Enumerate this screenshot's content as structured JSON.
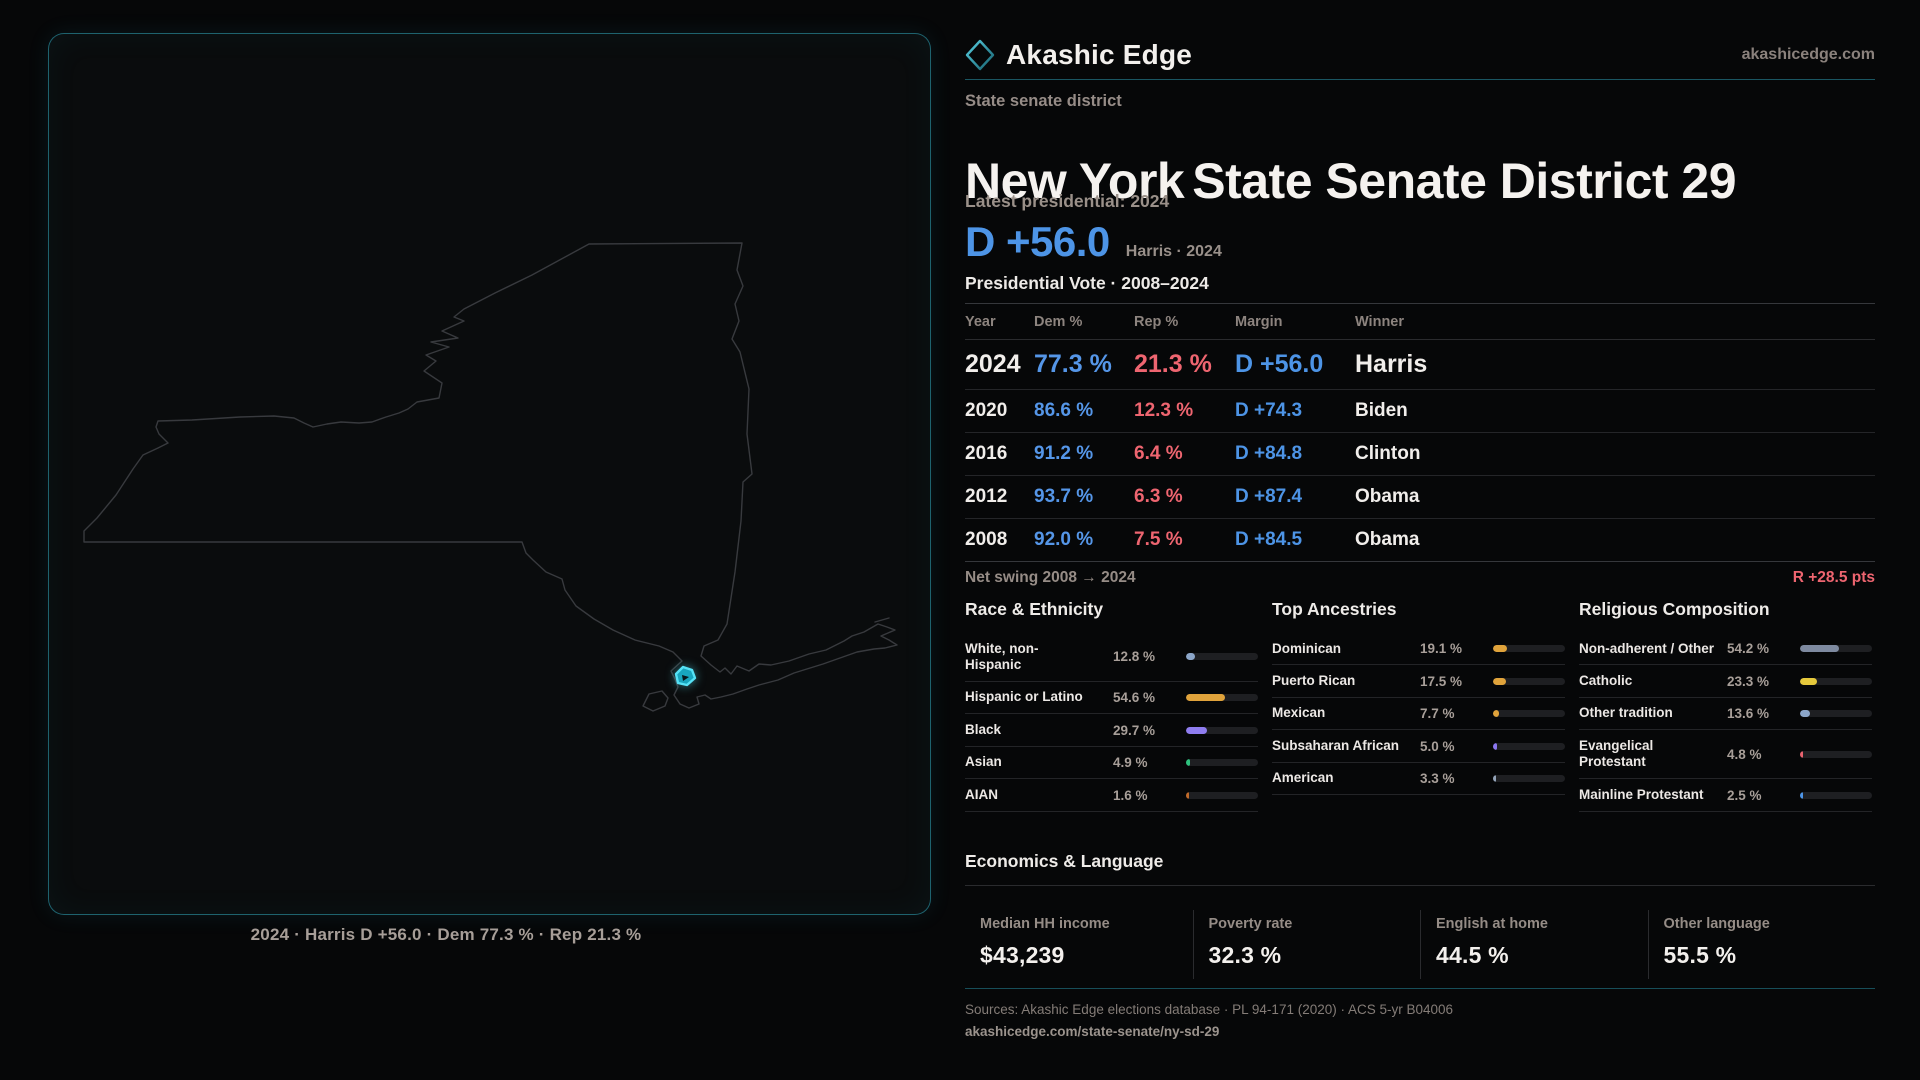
{
  "brand": {
    "name": "Akashic Edge",
    "domain": "akashicedge.com"
  },
  "map": {
    "caption": "2024 · Harris D +56.0 · Dem 77.3 % · Rep 21.3 %"
  },
  "header": {
    "kicker": "State senate district",
    "title_region": "New York",
    "title_body": "State Senate District 29",
    "latest_label": "Latest presidential: 2024",
    "headline_margin": "D +56.0",
    "headline_note": "Harris · 2024"
  },
  "vote_table": {
    "title": "Presidential Vote · 2008–2024",
    "columns": [
      "Year",
      "Dem %",
      "Rep %",
      "Margin",
      "Winner"
    ],
    "rows": [
      {
        "year": "2024",
        "dem": "77.3 %",
        "rep": "21.3 %",
        "margin": "D +56.0",
        "winner": "Harris",
        "emphasis": true
      },
      {
        "year": "2020",
        "dem": "86.6 %",
        "rep": "12.3 %",
        "margin": "D +74.3",
        "winner": "Biden",
        "emphasis": false
      },
      {
        "year": "2016",
        "dem": "91.2 %",
        "rep": "6.4 %",
        "margin": "D +84.8",
        "winner": "Clinton",
        "emphasis": false
      },
      {
        "year": "2012",
        "dem": "93.7 %",
        "rep": "6.3 %",
        "margin": "D +87.4",
        "winner": "Obama",
        "emphasis": false
      },
      {
        "year": "2008",
        "dem": "92.0 %",
        "rep": "7.5 %",
        "margin": "D +84.5",
        "winner": "Obama",
        "emphasis": false
      }
    ],
    "net_swing_label": "Net swing 2008 → 2024",
    "net_swing_value": "R +28.5 pts"
  },
  "demographics": [
    {
      "key": "race",
      "title": "Race & Ethnicity",
      "rows": [
        {
          "label": "White, non-Hispanic",
          "value": "12.8 %",
          "pct": 12.8,
          "color": "#8ca6c9"
        },
        {
          "label": "Hispanic or Latino",
          "value": "54.6 %",
          "pct": 54.6,
          "color": "#e0a33b"
        },
        {
          "label": "Black",
          "value": "29.7 %",
          "pct": 29.7,
          "color": "#8f7df0"
        },
        {
          "label": "Asian",
          "value": "4.9 %",
          "pct": 4.9,
          "color": "#2ec27e"
        },
        {
          "label": "AIAN",
          "value": "1.6 %",
          "pct": 1.6,
          "color": "#c06a2a"
        }
      ]
    },
    {
      "key": "ancestries",
      "title": "Top Ancestries",
      "rows": [
        {
          "label": "Dominican",
          "value": "19.1 %",
          "pct": 19.1,
          "color": "#e0a33b"
        },
        {
          "label": "Puerto Rican",
          "value": "17.5 %",
          "pct": 17.5,
          "color": "#e0a33b"
        },
        {
          "label": "Mexican",
          "value": "7.7 %",
          "pct": 7.7,
          "color": "#e0a33b"
        },
        {
          "label": "Subsaharan African",
          "value": "5.0 %",
          "pct": 5.0,
          "color": "#8a76f0"
        },
        {
          "label": "American",
          "value": "3.3 %",
          "pct": 3.3,
          "color": "#93a3b8"
        }
      ]
    },
    {
      "key": "religion",
      "title": "Religious Composition",
      "rows": [
        {
          "label": "Non-adherent / Other",
          "value": "54.2 %",
          "pct": 54.2,
          "color": "#7e8aa0"
        },
        {
          "label": "Catholic",
          "value": "23.3 %",
          "pct": 23.3,
          "color": "#e6c93c"
        },
        {
          "label": "Other tradition",
          "value": "13.6 %",
          "pct": 13.6,
          "color": "#8ca6c9"
        },
        {
          "label": "Evangelical Protestant",
          "value": "4.8 %",
          "pct": 4.8,
          "color": "#e8636f"
        },
        {
          "label": "Mainline Protestant",
          "value": "2.5 %",
          "pct": 2.5,
          "color": "#4d94e6"
        }
      ]
    }
  ],
  "economics": {
    "title": "Economics & Language",
    "stats": [
      {
        "label": "Median HH income",
        "value": "$43,239"
      },
      {
        "label": "Poverty rate",
        "value": "32.3 %"
      },
      {
        "label": "English at home",
        "value": "44.5 %"
      },
      {
        "label": "Other language",
        "value": "55.5 %"
      }
    ]
  },
  "footer": {
    "sources": "Sources: Akashic Edge elections database · PL 94-171 (2020) · ACS 5-yr B04006",
    "permalink": "akashicedge.com/state-senate/ny-sd-29"
  },
  "colors": {
    "dem_blue": "#4d94e6",
    "rep_red": "#ee6570",
    "accent_teal": "#2fa9bf"
  }
}
